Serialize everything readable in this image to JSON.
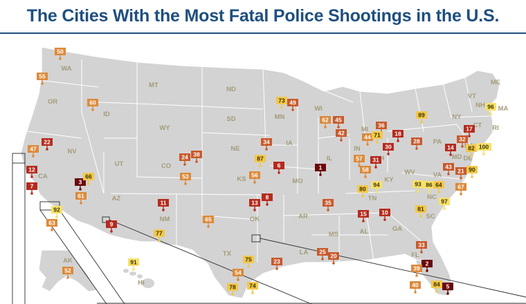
{
  "title": "The Cities With the Most Fatal Police Shootings in the U.S.",
  "palette": {
    "very_high": "#6b0a0a",
    "high": "#b52b1e",
    "mid_high": "#c85a2c",
    "mid": "#dc8a3a",
    "low": "#f2c84b",
    "very_low": "#f7e06a"
  },
  "states": [
    "WA",
    "OR",
    "MT",
    "ND",
    "MN",
    "WI",
    "MI",
    "VT",
    "ME",
    "NH",
    "MA",
    "NY",
    "RI",
    "CT",
    "ID",
    "WY",
    "SD",
    "IA",
    "IL",
    "IN",
    "OH",
    "PA",
    "NJ",
    "DE",
    "MD",
    "NV",
    "UT",
    "CO",
    "NE",
    "KS",
    "MO",
    "KY",
    "WV",
    "VA",
    "CA",
    "AZ",
    "NM",
    "OK",
    "AR",
    "TN",
    "NC",
    "SC",
    "MS",
    "AL",
    "GA",
    "TX",
    "LA",
    "FL",
    "AK",
    "HI"
  ],
  "markers": [
    {
      "rank": "50",
      "tier": "mid"
    },
    {
      "rank": "55",
      "tier": "mid"
    },
    {
      "rank": "60",
      "tier": "mid"
    },
    {
      "rank": "47",
      "tier": "mid"
    },
    {
      "rank": "22",
      "tier": "high"
    },
    {
      "rank": "12",
      "tier": "high"
    },
    {
      "rank": "7",
      "tier": "high"
    },
    {
      "rank": "3",
      "tier": "very_high"
    },
    {
      "rank": "66",
      "tier": "low"
    },
    {
      "rank": "61",
      "tier": "mid"
    },
    {
      "rank": "92",
      "tier": "very_low"
    },
    {
      "rank": "63",
      "tier": "mid"
    },
    {
      "rank": "9",
      "tier": "high"
    },
    {
      "rank": "11",
      "tier": "high"
    },
    {
      "rank": "77",
      "tier": "low"
    },
    {
      "rank": "24",
      "tier": "mid_high"
    },
    {
      "rank": "38",
      "tier": "mid_high"
    },
    {
      "rank": "53",
      "tier": "mid"
    },
    {
      "rank": "65",
      "tier": "mid"
    },
    {
      "rank": "34",
      "tier": "mid_high"
    },
    {
      "rank": "87",
      "tier": "low"
    },
    {
      "rank": "56",
      "tier": "mid"
    },
    {
      "rank": "6",
      "tier": "high"
    },
    {
      "rank": "13",
      "tier": "high"
    },
    {
      "rank": "8",
      "tier": "high"
    },
    {
      "rank": "35",
      "tier": "mid_high"
    },
    {
      "rank": "73",
      "tier": "low"
    },
    {
      "rank": "49",
      "tier": "mid_high"
    },
    {
      "rank": "62",
      "tier": "mid"
    },
    {
      "rank": "45",
      "tier": "mid_high"
    },
    {
      "rank": "42",
      "tier": "mid_high"
    },
    {
      "rank": "1",
      "tier": "very_high"
    },
    {
      "rank": "36",
      "tier": "mid_high"
    },
    {
      "rank": "44",
      "tier": "mid"
    },
    {
      "rank": "71",
      "tier": "low"
    },
    {
      "rank": "18",
      "tier": "high"
    },
    {
      "rank": "30",
      "tier": "high"
    },
    {
      "rank": "57",
      "tier": "mid"
    },
    {
      "rank": "31",
      "tier": "high"
    },
    {
      "rank": "58",
      "tier": "mid"
    },
    {
      "rank": "80",
      "tier": "low"
    },
    {
      "rank": "94",
      "tier": "very_low"
    },
    {
      "rank": "15",
      "tier": "high"
    },
    {
      "rank": "10",
      "tier": "high"
    },
    {
      "rank": "89",
      "tier": "low"
    },
    {
      "rank": "28",
      "tier": "mid_high"
    },
    {
      "rank": "14",
      "tier": "high"
    },
    {
      "rank": "17",
      "tier": "high"
    },
    {
      "rank": "32",
      "tier": "mid_high"
    },
    {
      "rank": "82",
      "tier": "low"
    },
    {
      "rank": "100",
      "tier": "very_low"
    },
    {
      "rank": "96",
      "tier": "very_low"
    },
    {
      "rank": "43",
      "tier": "mid_high"
    },
    {
      "rank": "21",
      "tier": "mid_high"
    },
    {
      "rank": "90",
      "tier": "low"
    },
    {
      "rank": "67",
      "tier": "mid"
    },
    {
      "rank": "93",
      "tier": "very_low"
    },
    {
      "rank": "86",
      "tier": "very_low"
    },
    {
      "rank": "64",
      "tier": "low"
    },
    {
      "rank": "97",
      "tier": "very_low"
    },
    {
      "rank": "81",
      "tier": "low"
    },
    {
      "rank": "25",
      "tier": "mid_high"
    },
    {
      "rank": "20",
      "tier": "mid_high"
    },
    {
      "rank": "33",
      "tier": "mid_high"
    },
    {
      "rank": "2",
      "tier": "very_high"
    },
    {
      "rank": "39",
      "tier": "mid"
    },
    {
      "rank": "40",
      "tier": "mid"
    },
    {
      "rank": "84",
      "tier": "low"
    },
    {
      "rank": "5",
      "tier": "very_high"
    },
    {
      "rank": "75",
      "tier": "low"
    },
    {
      "rank": "23",
      "tier": "mid_high"
    },
    {
      "rank": "54",
      "tier": "mid"
    },
    {
      "rank": "78",
      "tier": "low"
    },
    {
      "rank": "74",
      "tier": "low"
    },
    {
      "rank": "91",
      "tier": "very_low"
    },
    {
      "rank": "52",
      "tier": "mid"
    }
  ]
}
